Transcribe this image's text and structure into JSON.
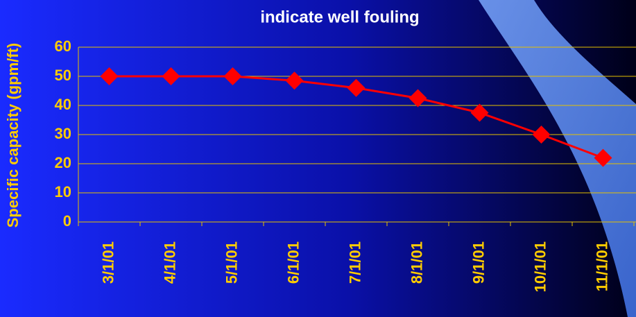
{
  "chart_data": {
    "type": "line",
    "title": "indicate well fouling",
    "y_label": "Specific capacity (gpm/ft)",
    "categories": [
      "3/1/01",
      "4/1/01",
      "5/1/01",
      "6/1/01",
      "7/1/01",
      "8/1/01",
      "9/1/01",
      "10/1/01",
      "11/1/01"
    ],
    "values": [
      50,
      50,
      50,
      48.5,
      46,
      42.5,
      37.5,
      30,
      22
    ],
    "color": "#ff0000",
    "ylim": [
      0,
      60
    ],
    "yticks": [
      0,
      10,
      20,
      30,
      40,
      50,
      60
    ],
    "grid": true,
    "grid_color": "#e6c200",
    "label_color": "#ffcc00"
  }
}
